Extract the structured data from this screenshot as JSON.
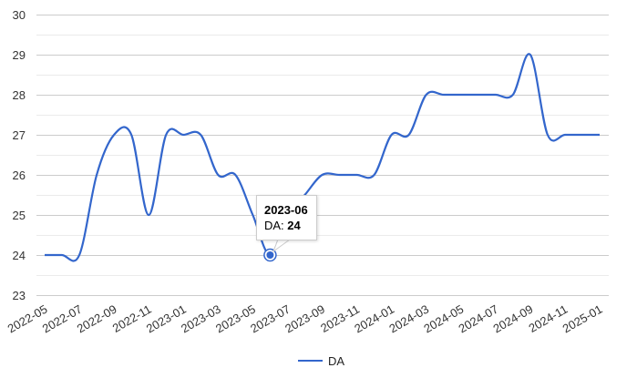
{
  "chart_data": {
    "type": "line",
    "title": "",
    "xlabel": "",
    "ylabel": "",
    "ylim": [
      23,
      30
    ],
    "yticks": [
      23,
      24,
      25,
      26,
      27,
      28,
      29,
      30
    ],
    "grid": true,
    "legend_position": "bottom",
    "x_tick_labels": [
      "2022-05",
      "2022-07",
      "2022-09",
      "2022-11",
      "2023-01",
      "2023-03",
      "2023-05",
      "2023-07",
      "2023-09",
      "2023-11",
      "2024-01",
      "2024-03",
      "2024-05",
      "2024-07",
      "2024-09",
      "2024-11",
      "2025-01"
    ],
    "x": [
      "2022-05",
      "2022-06",
      "2022-07",
      "2022-08",
      "2022-09",
      "2022-10",
      "2022-11",
      "2022-12",
      "2023-01",
      "2023-02",
      "2023-03",
      "2023-04",
      "2023-05",
      "2023-06",
      "2023-07",
      "2023-08",
      "2023-09",
      "2023-10",
      "2023-11",
      "2023-12",
      "2024-01",
      "2024-02",
      "2024-03",
      "2024-04",
      "2024-05",
      "2024-06",
      "2024-07",
      "2024-08",
      "2024-09",
      "2024-10",
      "2024-11",
      "2024-12",
      "2025-01"
    ],
    "series": [
      {
        "name": "DA",
        "color": "#3366cc",
        "values": [
          24,
          24,
          24,
          26,
          27,
          27,
          25,
          27,
          27,
          27,
          26,
          26,
          25,
          24,
          25,
          25.5,
          26,
          26,
          26,
          26,
          27,
          27,
          28,
          28,
          28,
          28,
          28,
          28,
          29,
          27,
          27,
          27,
          27
        ]
      }
    ]
  },
  "tooltip": {
    "title": "2023-06",
    "series_label": "DA: ",
    "value": "24",
    "index": 13
  },
  "legend": {
    "label": "DA",
    "color": "#3366cc"
  }
}
